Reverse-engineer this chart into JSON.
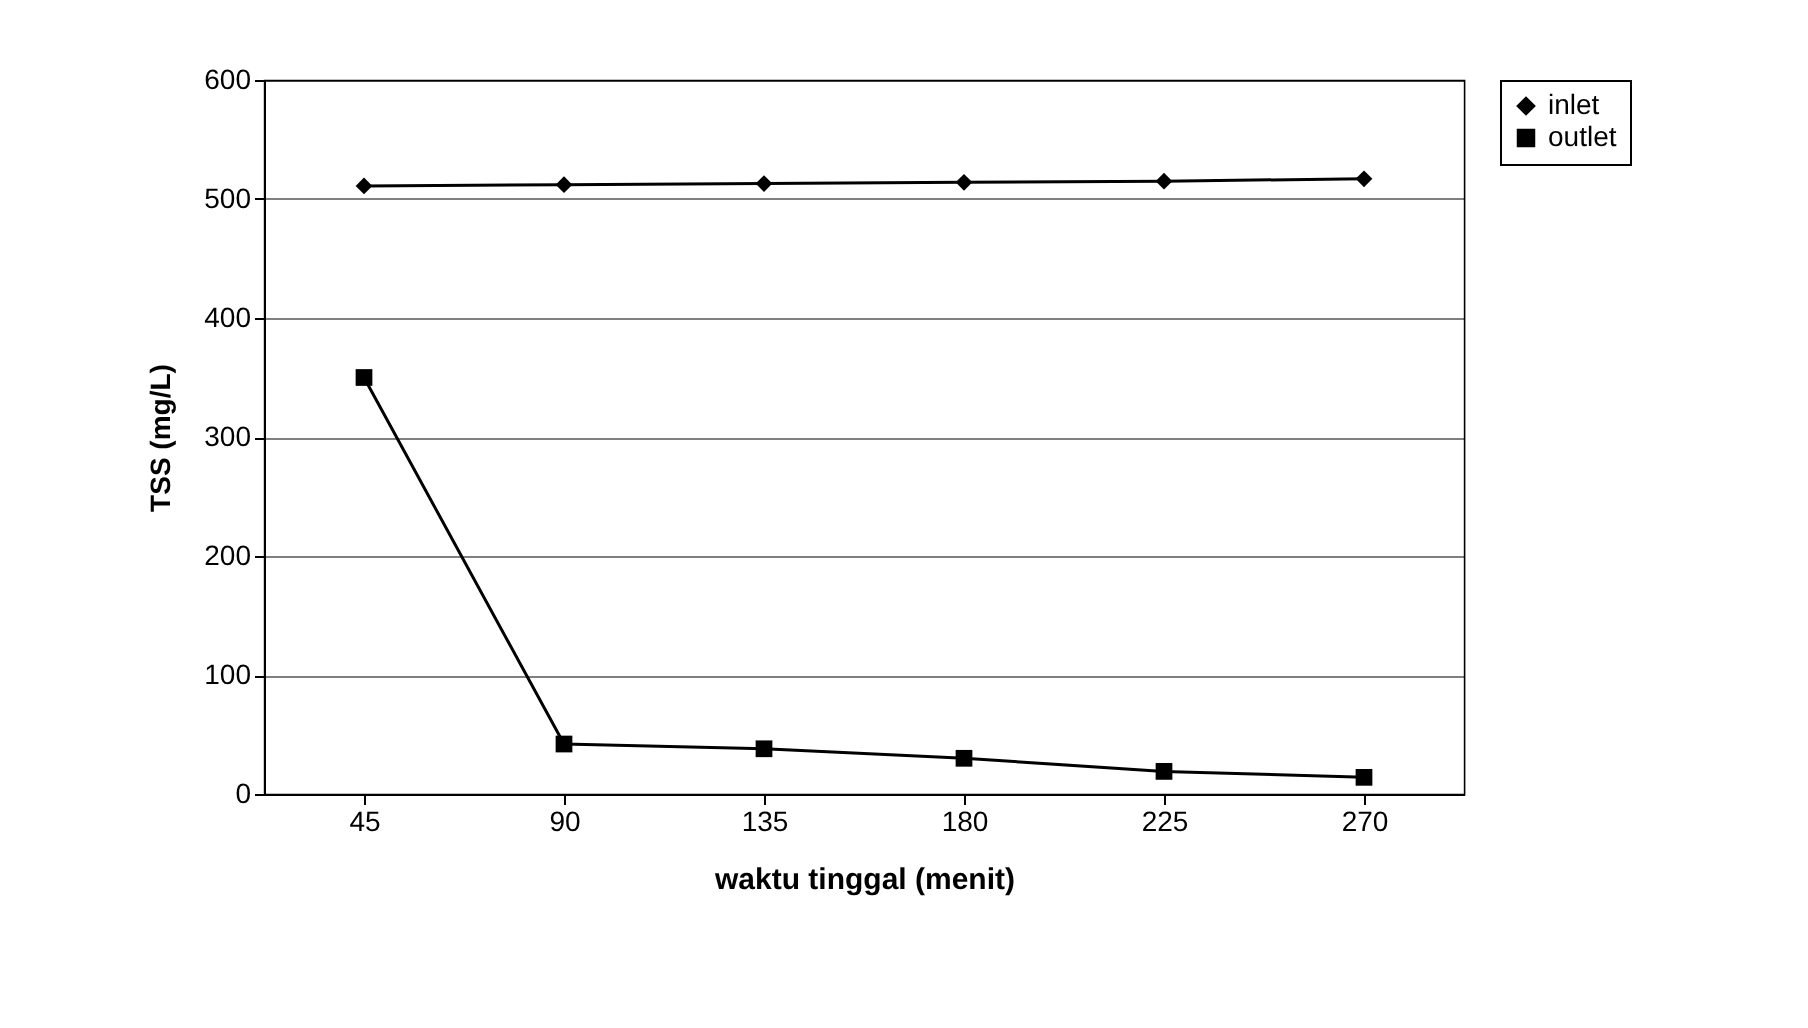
{
  "chart_data": {
    "type": "line",
    "xlabel": "waktu tinggal (menit)",
    "ylabel": "TSS (mg/L)",
    "categories": [
      "45",
      "90",
      "135",
      "180",
      "225",
      "270"
    ],
    "series": [
      {
        "name": "inlet",
        "color": "#000000",
        "marker": "diamond",
        "values": [
          511,
          512,
          513,
          514,
          515,
          517
        ]
      },
      {
        "name": "outlet",
        "color": "#000000",
        "marker": "square",
        "values": [
          350,
          42,
          38,
          30,
          19,
          14
        ]
      }
    ],
    "ylim": [
      0,
      600
    ],
    "yticks": [
      0,
      100,
      200,
      300,
      400,
      500,
      600
    ],
    "grid": "y",
    "legend": "right"
  }
}
